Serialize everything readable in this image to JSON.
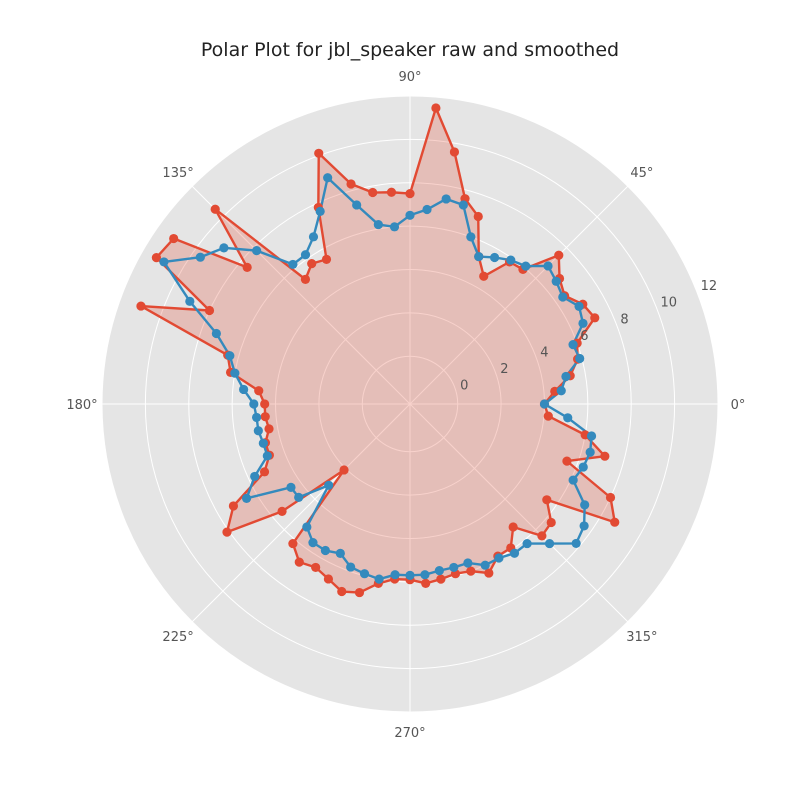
{
  "chart_data": {
    "type": "polar-line",
    "title": "Polar Plot for jbl_speaker raw and smoothed",
    "angle_unit": "degrees",
    "angle_tick_labels": [
      "0°",
      "45°",
      "90°",
      "135°",
      "180°",
      "225°",
      "270°",
      "315°"
    ],
    "angle_ticks": [
      0,
      45,
      90,
      135,
      180,
      225,
      270,
      315
    ],
    "radial_tick_labels": [
      "0",
      "2",
      "4",
      "6",
      "8",
      "10",
      "12"
    ],
    "radial_ticks": [
      0,
      2,
      4,
      6,
      8,
      10,
      12
    ],
    "rlim": [
      -2.2,
      12
    ],
    "grid": true,
    "background": "#e5e5e5",
    "series": [
      {
        "color": "#e24a33",
        "fill": true,
        "fill_color": "#e24a33",
        "points": [
          [
            0,
            4.0
          ],
          [
            5,
            4.5
          ],
          [
            10,
            5.3
          ],
          [
            15,
            5.8
          ],
          [
            20,
            6.0
          ],
          [
            25,
            7.2
          ],
          [
            30,
            7.0
          ],
          [
            35,
            6.5
          ],
          [
            40,
            6.8
          ],
          [
            45,
            7.5
          ],
          [
            50,
            5.9
          ],
          [
            55,
            5.8
          ],
          [
            60,
            4.6
          ],
          [
            65,
            5.3
          ],
          [
            70,
            7.0
          ],
          [
            75,
            7.6
          ],
          [
            80,
            9.6
          ],
          [
            85,
            11.5
          ],
          [
            90,
            7.5
          ],
          [
            95,
            7.6
          ],
          [
            100,
            7.7
          ],
          [
            105,
            8.3
          ],
          [
            110,
            10.1
          ],
          [
            115,
            7.8
          ],
          [
            120,
            5.5
          ],
          [
            125,
            5.7
          ],
          [
            130,
            5.3
          ],
          [
            135,
            10.5
          ],
          [
            140,
            7.6
          ],
          [
            145,
            11.1
          ],
          [
            150,
            11.3
          ],
          [
            155,
            8.0
          ],
          [
            160,
            11.0
          ],
          [
            165,
            6.5
          ],
          [
            170,
            6.2
          ],
          [
            175,
            4.8
          ],
          [
            180,
            4.5
          ],
          [
            185,
            4.5
          ],
          [
            190,
            4.4
          ],
          [
            195,
            4.7
          ],
          [
            200,
            4.7
          ],
          [
            205,
            5.2
          ],
          [
            210,
            7.2
          ],
          [
            215,
            8.1
          ],
          [
            220,
            5.5
          ],
          [
            225,
            2.1
          ],
          [
            230,
            6.2
          ],
          [
            235,
            6.7
          ],
          [
            240,
            6.5
          ],
          [
            245,
            6.7
          ],
          [
            250,
            7.0
          ],
          [
            255,
            6.8
          ],
          [
            260,
            6.2
          ],
          [
            265,
            5.9
          ],
          [
            270,
            5.9
          ],
          [
            275,
            6.1
          ],
          [
            280,
            6.0
          ],
          [
            285,
            5.9
          ],
          [
            290,
            6.0
          ],
          [
            295,
            6.4
          ],
          [
            300,
            5.9
          ],
          [
            305,
            5.9
          ],
          [
            310,
            5.2
          ],
          [
            315,
            6.4
          ],
          [
            320,
            6.3
          ],
          [
            325,
            5.5
          ],
          [
            330,
            8.7
          ],
          [
            335,
            8.0
          ],
          [
            340,
            5.5
          ],
          [
            345,
            7.1
          ],
          [
            350,
            6.0
          ],
          [
            355,
            4.2
          ],
          [
            0,
            4.0
          ]
        ]
      },
      {
        "color": "#348abd",
        "fill": false,
        "points": [
          [
            0,
            4.0
          ],
          [
            5,
            4.8
          ],
          [
            10,
            5.1
          ],
          [
            15,
            5.9
          ],
          [
            20,
            5.8
          ],
          [
            25,
            6.6
          ],
          [
            30,
            6.8
          ],
          [
            35,
            6.4
          ],
          [
            40,
            6.6
          ],
          [
            45,
            6.8
          ],
          [
            50,
            6.1
          ],
          [
            55,
            5.9
          ],
          [
            60,
            5.6
          ],
          [
            65,
            5.3
          ],
          [
            70,
            6.0
          ],
          [
            75,
            7.3
          ],
          [
            80,
            7.4
          ],
          [
            85,
            6.8
          ],
          [
            90,
            6.5
          ],
          [
            95,
            6.0
          ],
          [
            100,
            6.2
          ],
          [
            105,
            7.3
          ],
          [
            110,
            8.9
          ],
          [
            115,
            7.6
          ],
          [
            120,
            6.7
          ],
          [
            125,
            6.2
          ],
          [
            130,
            6.2
          ],
          [
            135,
            7.8
          ],
          [
            140,
            9.0
          ],
          [
            145,
            9.6
          ],
          [
            150,
            10.9
          ],
          [
            155,
            9.0
          ],
          [
            160,
            7.3
          ],
          [
            165,
            6.4
          ],
          [
            170,
            6.0
          ],
          [
            175,
            5.5
          ],
          [
            180,
            5.0
          ],
          [
            185,
            4.9
          ],
          [
            190,
            4.9
          ],
          [
            195,
            4.8
          ],
          [
            200,
            4.8
          ],
          [
            205,
            5.7
          ],
          [
            210,
            6.5
          ],
          [
            215,
            4.5
          ],
          [
            220,
            4.5
          ],
          [
            225,
            3.1
          ],
          [
            230,
            5.2
          ],
          [
            235,
            5.6
          ],
          [
            240,
            5.6
          ],
          [
            245,
            5.4
          ],
          [
            250,
            5.8
          ],
          [
            255,
            5.9
          ],
          [
            260,
            6.0
          ],
          [
            265,
            5.7
          ],
          [
            270,
            5.7
          ],
          [
            275,
            5.7
          ],
          [
            280,
            5.6
          ],
          [
            285,
            5.6
          ],
          [
            290,
            5.6
          ],
          [
            295,
            6.0
          ],
          [
            300,
            6.0
          ],
          [
            305,
            6.2
          ],
          [
            310,
            6.2
          ],
          [
            315,
            6.9
          ],
          [
            320,
            7.8
          ],
          [
            325,
            7.6
          ],
          [
            330,
            7.1
          ],
          [
            335,
            6.1
          ],
          [
            340,
            6.3
          ],
          [
            345,
            6.4
          ],
          [
            350,
            6.3
          ],
          [
            355,
            5.1
          ],
          [
            0,
            4.0
          ]
        ]
      }
    ]
  }
}
